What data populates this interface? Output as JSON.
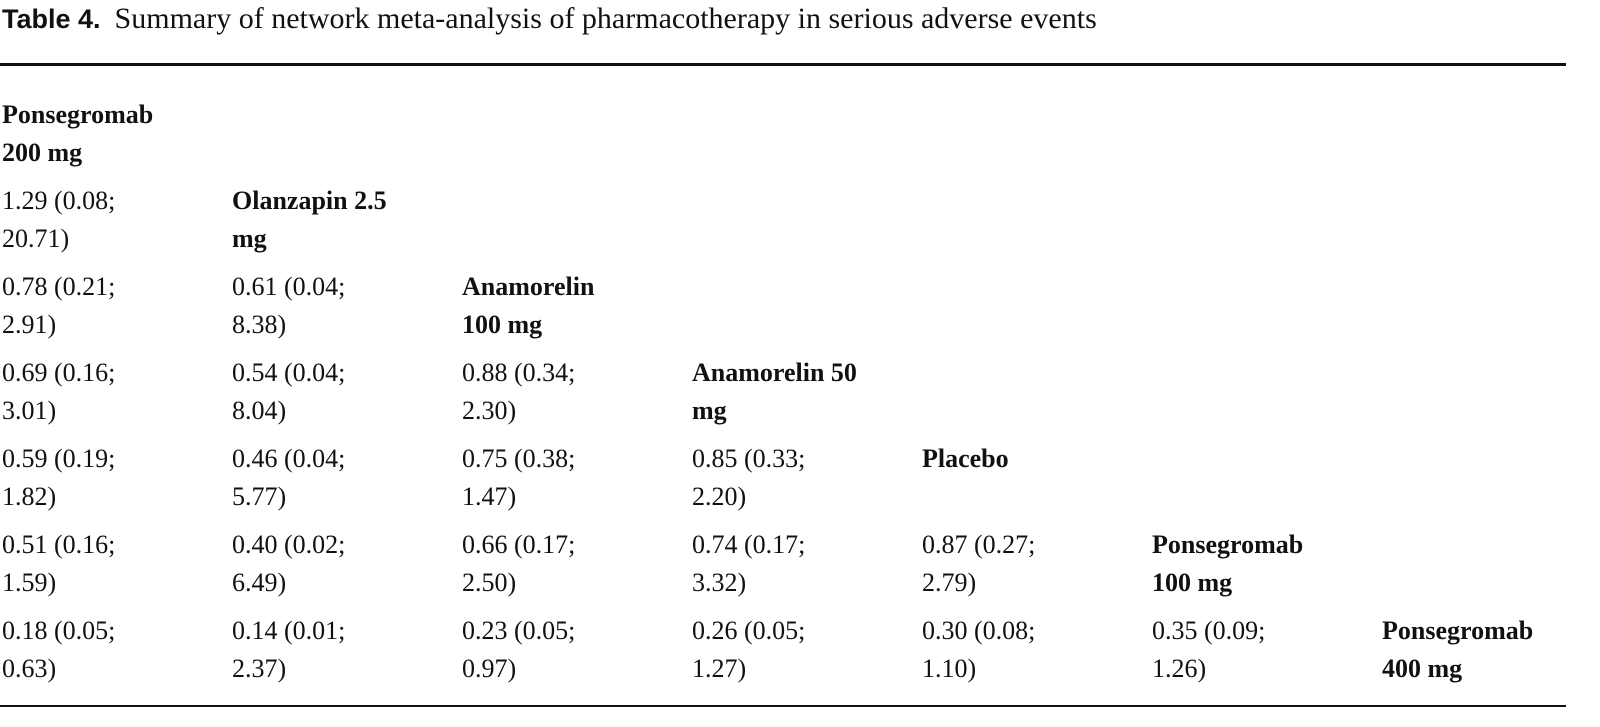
{
  "header": {
    "label": "Table 4.",
    "title": "Summary of network meta-analysis of pharmacotherapy in serious adverse events"
  },
  "table": {
    "rows": [
      [
        "Ponsegromab 200 mg"
      ],
      [
        "1.29 (0.08; 20.71)",
        "Olanzapin 2.5 mg"
      ],
      [
        "0.78 (0.21; 2.91)",
        "0.61 (0.04; 8.38)",
        "Anamorelin 100 mg"
      ],
      [
        "0.69 (0.16; 3.01)",
        "0.54 (0.04; 8.04)",
        "0.88 (0.34; 2.30)",
        "Anamorelin 50 mg"
      ],
      [
        "0.59 (0.19; 1.82)",
        "0.46 (0.04; 5.77)",
        "0.75 (0.38; 1.47)",
        "0.85 (0.33; 2.20)",
        "Placebo"
      ],
      [
        "0.51 (0.16; 1.59)",
        "0.40 (0.02; 6.49)",
        "0.66 (0.17; 2.50)",
        "0.74 (0.17; 3.32)",
        "0.87 (0.27; 2.79)",
        "Ponsegromab 100 mg"
      ],
      [
        "0.18 (0.05; 0.63)",
        "0.14 (0.01; 2.37)",
        "0.23 (0.05; 0.97)",
        "0.26 (0.05; 1.27)",
        "0.30 (0.08; 1.10)",
        "0.35 (0.09; 1.26)",
        "Ponsegromab 400 mg"
      ]
    ]
  }
}
